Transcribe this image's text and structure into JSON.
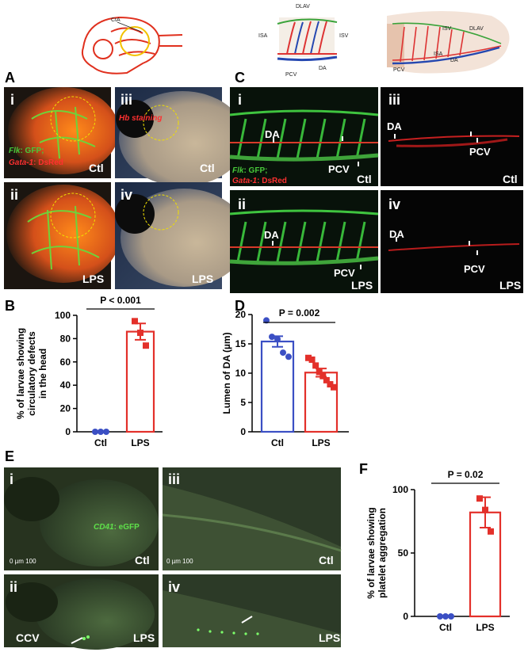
{
  "schematics": {
    "head": {
      "labels": [
        "CtA"
      ]
    },
    "trunk": {
      "labels": [
        "DLAV",
        "ISA",
        "ISV",
        "PCV",
        "DA"
      ]
    },
    "tail": {
      "labels": [
        "DLAV",
        "ISV",
        "ISA",
        "DA",
        "PCV"
      ]
    }
  },
  "panels": {
    "A": {
      "label": "A",
      "reporter": [
        {
          "gene": "Flk",
          "suffix": ": GFP;"
        },
        {
          "gene": "Gata-1",
          "suffix": ": DsRed"
        }
      ],
      "images": [
        {
          "numeral": "i",
          "condition": "Ctl"
        },
        {
          "numeral": "iii",
          "stain": "Hb staining",
          "condition": "Ctl"
        },
        {
          "numeral": "ii",
          "condition": "LPS"
        },
        {
          "numeral": "iv",
          "condition": "LPS"
        }
      ]
    },
    "C": {
      "label": "C",
      "reporter": [
        {
          "gene": "Flk",
          "suffix": ": GFP;"
        },
        {
          "gene": "Gata-1",
          "suffix": ": DsRed"
        }
      ],
      "images": [
        {
          "numeral": "i",
          "vessels": [
            "DA",
            "PCV"
          ],
          "condition": "Ctl"
        },
        {
          "numeral": "iii",
          "vessels": [
            "DA",
            "PCV"
          ],
          "condition": "Ctl"
        },
        {
          "numeral": "ii",
          "vessels": [
            "DA",
            "PCV"
          ],
          "condition": "LPS"
        },
        {
          "numeral": "iv",
          "vessels": [
            "DA",
            "PCV"
          ],
          "condition": "LPS"
        }
      ]
    },
    "E": {
      "label": "E",
      "reporter": [
        {
          "gene": "CD41",
          "suffix": ": eGFP"
        }
      ],
      "images": [
        {
          "numeral": "i",
          "scale": "0  µm 100",
          "condition": "Ctl"
        },
        {
          "numeral": "iii",
          "scale": "0  µm 100",
          "condition": "Ctl"
        },
        {
          "numeral": "ii",
          "vessel": "CCV",
          "condition": "LPS"
        },
        {
          "numeral": "iv",
          "condition": "LPS"
        }
      ]
    }
  },
  "chart_data": [
    {
      "type": "bar",
      "label": "B",
      "annotation": "P < 0.001",
      "y_label": [
        "% of larvae showing",
        "circulatory defects",
        "in the head"
      ],
      "categories": [
        "Ctl",
        "LPS"
      ],
      "colors": [
        "#3b4fc4",
        "#e3302a"
      ],
      "values": [
        0,
        86
      ],
      "errors": [
        0,
        7
      ],
      "points": [
        [
          0,
          0,
          0
        ],
        [
          95,
          85,
          74
        ]
      ],
      "ylim": [
        0,
        100
      ],
      "yticks": [
        0,
        20,
        40,
        60,
        80,
        100
      ]
    },
    {
      "type": "bar",
      "label": "D",
      "annotation": "P = 0.002",
      "y_label": [
        "Lumen of DA (µm)"
      ],
      "categories": [
        "Ctl",
        "LPS"
      ],
      "colors": [
        "#3b4fc4",
        "#e3302a"
      ],
      "values": [
        15.4,
        10.1
      ],
      "errors": [
        0.9,
        0.7
      ],
      "points": [
        [
          19,
          16.2,
          15.8,
          13.5,
          12.8
        ],
        [
          12.6,
          12.3,
          11.3,
          10.2,
          9.5,
          8.8,
          8.1,
          7.6
        ]
      ],
      "ylim": [
        0,
        20
      ],
      "yticks": [
        0,
        5,
        10,
        15,
        20
      ]
    },
    {
      "type": "bar",
      "label": "F",
      "annotation": "P = 0.02",
      "y_label": [
        "% of larvae showing",
        "platelet aggregation"
      ],
      "categories": [
        "Ctl",
        "LPS"
      ],
      "colors": [
        "#3b4fc4",
        "#e3302a"
      ],
      "values": [
        0,
        82
      ],
      "errors": [
        0,
        12
      ],
      "points": [
        [
          0,
          0,
          0
        ],
        [
          93,
          84,
          67
        ]
      ],
      "ylim": [
        0,
        100
      ],
      "yticks": [
        0,
        50,
        100
      ]
    }
  ]
}
